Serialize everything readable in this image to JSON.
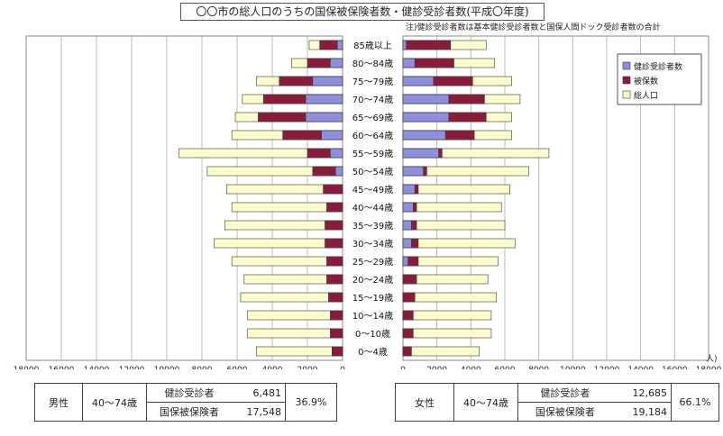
{
  "title": "〇〇市の総人口のうちの国保被保険者数・健診受診者数(平成〇年度)",
  "note": "注)健診受診者数は基本健診受診者数と国保人間ドック受診者数の合計",
  "legend": {
    "examinees": "健診受診者数",
    "insured": "被保数",
    "population": "総人口"
  },
  "colors": {
    "examinees": "#8f8fe0",
    "insured": "#8b1c3c",
    "population": "#ffffcc",
    "border": "#333333"
  },
  "unit": "人)",
  "chart_data": {
    "type": "bar",
    "orientation": "horizontal",
    "subtype": "population-pyramid",
    "categories": [
      "85歳以上",
      "80～84歳",
      "75～79歳",
      "70～74歳",
      "65～69歳",
      "60～64歳",
      "55～59歳",
      "50～54歳",
      "45～49歳",
      "40～44歳",
      "35～39歳",
      "30～34歳",
      "25～29歳",
      "20～24歳",
      "15～19歳",
      "10～14歳",
      "0～10歳",
      "0～4歳"
    ],
    "male": {
      "population": [
        1900,
        2900,
        4900,
        5700,
        6100,
        6300,
        9300,
        7700,
        6600,
        6300,
        6700,
        7300,
        6300,
        5600,
        5800,
        5400,
        5400,
        4900
      ],
      "insured": [
        1300,
        2000,
        3600,
        4500,
        4800,
        3400,
        2000,
        1700,
        1100,
        900,
        1000,
        1000,
        900,
        900,
        800,
        700,
        700,
        600
      ],
      "examinees": [
        300,
        700,
        1700,
        2100,
        2100,
        1200,
        700,
        400,
        0,
        0,
        0,
        0,
        0,
        0,
        0,
        0,
        0,
        0
      ]
    },
    "female": {
      "population": [
        4900,
        5400,
        6400,
        6900,
        6400,
        6400,
        8600,
        7400,
        6300,
        5800,
        6000,
        6600,
        5600,
        5000,
        5500,
        5200,
        5200,
        4500
      ],
      "insured": [
        2800,
        3000,
        4100,
        4800,
        4900,
        4200,
        2300,
        1400,
        900,
        800,
        800,
        900,
        900,
        800,
        700,
        600,
        600,
        500
      ],
      "examinees": [
        200,
        700,
        1800,
        2700,
        2700,
        2500,
        2100,
        1200,
        700,
        600,
        500,
        500,
        300,
        0,
        0,
        0,
        0,
        0
      ]
    },
    "xlim": [
      0,
      18000
    ],
    "ticks": [
      "18000",
      "16000",
      "14000",
      "12000",
      "10000",
      "8000",
      "6000",
      "4000",
      "2000",
      "0",
      "0",
      "2000",
      "4000",
      "6000",
      "8000",
      "10000",
      "12000",
      "14000",
      "16000",
      "18000"
    ],
    "legend_position": "top-right",
    "grid": true
  },
  "summary": {
    "male": {
      "sex": "男性",
      "age": "40～74歳",
      "examinees_label": "健診受診者",
      "examinees": "6,481",
      "insured_label": "国保被保険者",
      "insured": "17,548",
      "rate": "36.9%"
    },
    "female": {
      "sex": "女性",
      "age": "40～74歳",
      "examinees_label": "健診受診者",
      "examinees": "12,685",
      "insured_label": "国保被保険者",
      "insured": "19,184",
      "rate": "66.1%"
    }
  }
}
